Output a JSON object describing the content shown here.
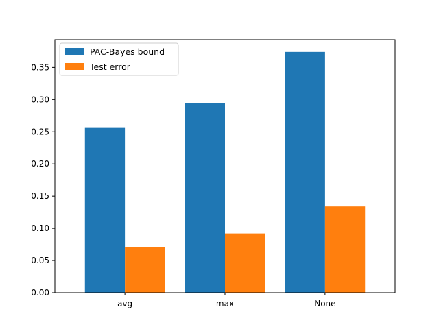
{
  "chart_data": {
    "type": "bar",
    "title": "",
    "xlabel": "",
    "ylabel": "",
    "categories": [
      "avg",
      "max",
      "None"
    ],
    "series": [
      {
        "name": "PAC-Bayes bound",
        "color": "#1f77b4",
        "values": [
          0.256,
          0.294,
          0.374
        ]
      },
      {
        "name": "Test error",
        "color": "#ff7f0e",
        "values": [
          0.071,
          0.092,
          0.134
        ]
      }
    ],
    "ylim": [
      0,
      0.393
    ],
    "yticks": [
      0.0,
      0.05,
      0.1,
      0.15,
      0.2,
      0.25,
      0.3,
      0.35
    ],
    "ytick_labels": [
      "0.00",
      "0.05",
      "0.10",
      "0.15",
      "0.20",
      "0.25",
      "0.30",
      "0.35"
    ],
    "grid": false,
    "legend_position": "upper left"
  }
}
